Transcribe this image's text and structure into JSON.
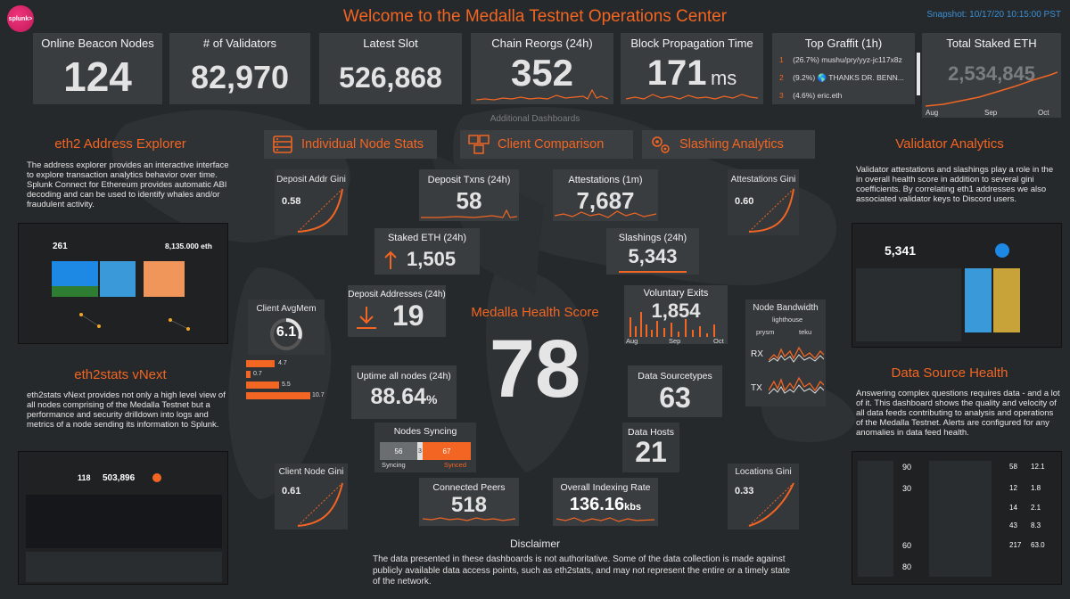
{
  "header": {
    "logo_text": "splunk>",
    "title": "Welcome to the Medalla Testnet Operations Center",
    "snapshot": "Snapshot: 10/17/20 10:15:00 PST"
  },
  "top_stats": {
    "online_nodes": {
      "label": "Online Beacon Nodes",
      "value": "124"
    },
    "validators": {
      "label": "# of Validators",
      "value": "82,970"
    },
    "latest_slot": {
      "label": "Latest Slot",
      "value": "526,868"
    },
    "reorgs": {
      "label": "Chain Reorgs (24h)",
      "value": "352"
    },
    "propagation": {
      "label": "Block Propagation Time",
      "value": "171",
      "unit": "ms"
    },
    "graffiti": {
      "label": "Top Graffit (1h)",
      "rows": [
        {
          "rank": "1",
          "text": "(26.7%) mushu/pry/yyz-jc117x8z"
        },
        {
          "rank": "2",
          "text": "(9.2%) 🌎 THANKS DR. BENN..."
        },
        {
          "rank": "3",
          "text": "(4.6%) eric.eth"
        }
      ]
    },
    "staked": {
      "label": "Total Staked ETH",
      "value": "2,534,845",
      "ticks": [
        "Aug",
        "Sep",
        "Oct"
      ]
    }
  },
  "additional_dashboards": "Additional Dashboards",
  "nav": {
    "individual": "Individual Node Stats",
    "comparison": "Client Comparison",
    "slashing": "Slashing Analytics"
  },
  "left": {
    "address_title": "eth2 Address Explorer",
    "address_text": "The address explorer provides an interactive interface to explore transaction analytics behavior over time.   Splunk Connect for Ethereum provides automatic ABI decoding and can be used to identify whales and/or fraudulent activity.",
    "address_thumb_val1": "261",
    "address_thumb_val2": "8,135.000 eth",
    "eth2stats_title": "eth2stats vNext",
    "eth2stats_text": "eth2stats vNext provides not only a high level view of all nodes comprising of the Medalla Testnet but a performance and security drilldown into logs and metrics of a node sending its information to Splunk.",
    "eth2stats_thumb_val1": "118",
    "eth2stats_thumb_val2": "503,896"
  },
  "right": {
    "validator_title": "Validator Analytics",
    "validator_text": "Validator attestations and slashings play a role in the in overall health score in addition to several gini coefficients.  By correlating eth1 addresses we also associated validator keys to Discord users.",
    "validator_thumb_val": "5,341",
    "dsh_title": "Data Source Health",
    "dsh_text": "Answering complex questions requires data - and a lot of it. This dashboard shows the quality and velocity of all data feeds contributing to analysis and operations of the Medalla Testnet.  Alerts are configured for any anomalies in data feed health.",
    "dsh_thumb_vals": [
      "90",
      "58",
      "12.1",
      "30",
      "12",
      "1.8",
      "14",
      "2.1",
      "43",
      "8.3",
      "60",
      "217",
      "63.0",
      "80"
    ]
  },
  "center": {
    "deposit_gini": {
      "label": "Deposit Addr Gini",
      "value": "0.58"
    },
    "deposit_txns": {
      "label": "Deposit Txns (24h)",
      "value": "58"
    },
    "attestations": {
      "label": "Attestations (1m)",
      "value": "7,687"
    },
    "attest_gini": {
      "label": "Attestations Gini",
      "value": "0.60"
    },
    "staked_eth": {
      "label": "Staked ETH (24h)",
      "value": "1,505"
    },
    "slashings": {
      "label": "Slashings (24h)",
      "value": "5,343"
    },
    "deposit_addrs": {
      "label": "Deposit Addresses  (24h)",
      "value": "19"
    },
    "voluntary": {
      "label": "Voluntary Exits",
      "value": "1,854",
      "ticks": [
        "Aug",
        "Sep",
        "Oct"
      ]
    },
    "client_avgmem": {
      "label": "Client AvgMem",
      "value": "6.1"
    },
    "mem_bars": [
      {
        "value": "4.7",
        "fraction": 0.44
      },
      {
        "value": "0.7",
        "fraction": 0.07
      },
      {
        "value": "5.5",
        "fraction": 0.51
      },
      {
        "value": "10.7",
        "fraction": 1.0
      }
    ],
    "health": {
      "label": "Medalla Health Score",
      "value": "78"
    },
    "uptime": {
      "label": "Uptime all nodes (24h)",
      "value": "88.64",
      "unit": "%"
    },
    "sourcetypes": {
      "label": "Data Sourcetypes",
      "value": "63"
    },
    "bandwidth": {
      "label": "Node Bandwidth",
      "client1": "lighthouse",
      "client2": "prysm",
      "client3": "teku",
      "rx": "RX",
      "tx": "TX"
    },
    "syncing": {
      "label": "Nodes Syncing",
      "syncing_value": "56",
      "mid_value": "3",
      "synced_value": "67",
      "syncing_label": "Syncing",
      "synced_label": "Synced"
    },
    "data_hosts": {
      "label": "Data Hosts",
      "value": "21"
    },
    "client_gini": {
      "label": "Client Node Gini",
      "value": "0.61"
    },
    "location_gini": {
      "label": "Locations Gini",
      "value": "0.33"
    },
    "peers": {
      "label": "Connected Peers",
      "value": "518"
    },
    "indexing": {
      "label": "Overall Indexing Rate",
      "value": "136.16",
      "unit": "kbs"
    }
  },
  "disclaimer": {
    "title": "Disclaimer",
    "text": "The data presented in these dashboards is not authoritative. Some of the data collection is made against publicly available data access points, such as eth2stats, and may not represent the entire or a timely state of the network."
  },
  "colors": {
    "accent": "#f26522",
    "panel": "#3a3d40",
    "background": "#26292b",
    "blue": "#1e88e5"
  }
}
